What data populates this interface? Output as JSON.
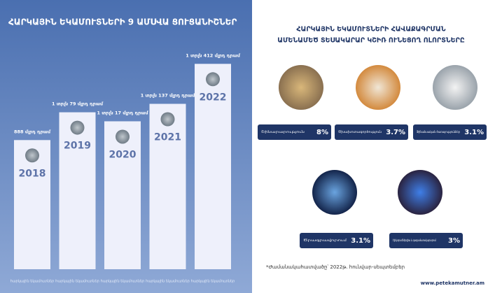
{
  "chart_data": [
    {
      "type": "bar",
      "title": "ՀԱՐԿԱՅԻՆ ԵԿԱՄՈՒՏՆԵՐԻ 9 ԱՄՍՎԱ ՑՈՒՑԱՆԻՇՆԵՐ",
      "categories": [
        "2018",
        "2019",
        "2020",
        "2021",
        "2022"
      ],
      "values": [
        888,
        1079,
        1017,
        1137,
        1412
      ],
      "value_labels": [
        "888 մլրդ դրամ",
        "1 տրլն 79 մլրդ դրամ",
        "1 տրլն 17 մլրդ դրամ",
        "1 տրլն 137 մլրդ դրամ",
        "1 տրլն 412 մլրդ դրամ"
      ],
      "bar_caption": "հարկային եկամուտներ",
      "color": "#eef0fb"
    },
    {
      "type": "sectors",
      "title": [
        "ՀԱՐԿԱՅԻՆ ԵԿԱՄՈՒՏՆԵՐԻ ՀԱՎԱՔԱԳՐՄԱՆ",
        "ԱՄԵՆԱՄԵԾ ՏԵՍԱԿԱՐԱՐ ԿՇԻՌ ՈՒՆԵՑՈՂ ՈԼՈՐՏՆԵՐԸ"
      ],
      "categories": [
        "Շինարարություն",
        "Ծխախոտագործություն",
        "Ֆինանսական ծառայություններ",
        "Ծրագրավորում",
        "Էլեկտրաէներգիա և գազամատակարարում"
      ],
      "values": [
        8,
        3.7,
        3.1,
        3.1,
        3
      ],
      "value_labels": [
        "8%",
        "3.7%",
        "3.1%",
        "3.1%",
        "3%"
      ],
      "color": "#1f3566"
    }
  ],
  "footnote": "*Ժամանակահատվածը՝ 2022թ. հունվար-սեպտեմբեր",
  "website": "www.petekamutner.am"
}
